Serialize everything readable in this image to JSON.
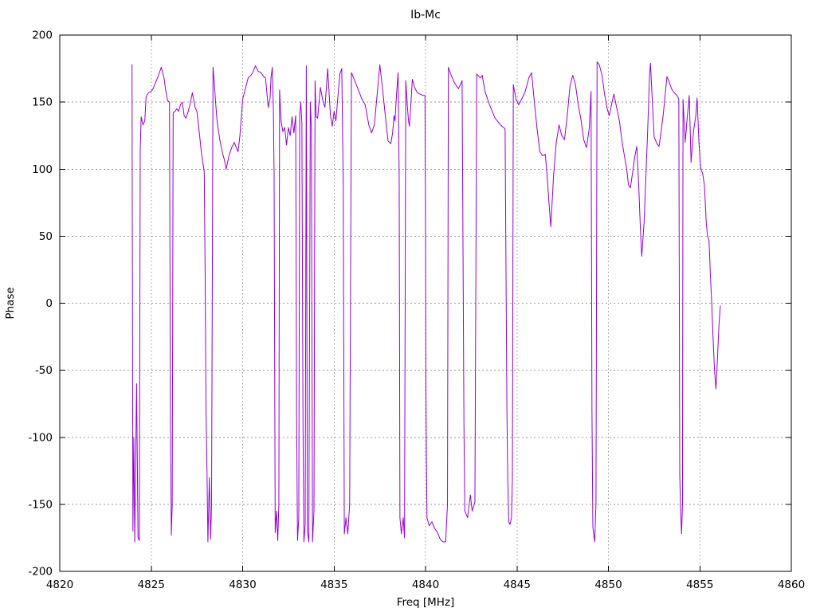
{
  "window": {
    "background": "#ffffff"
  },
  "chart_data": {
    "type": "line",
    "title": "Ib-Mc",
    "xlabel": "Freq [MHz]",
    "ylabel": "Phase",
    "xlim": [
      4820,
      4860
    ],
    "ylim": [
      -200,
      200
    ],
    "xticks": [
      4820,
      4825,
      4830,
      4835,
      4840,
      4845,
      4850,
      4855,
      4860
    ],
    "yticks": [
      -200,
      -150,
      -100,
      -50,
      0,
      50,
      100,
      150,
      200
    ],
    "grid": true,
    "legend": "none",
    "line_color": "#9400d3",
    "grid_color": "#9a9a9a",
    "border_color": "#000000",
    "series": [
      {
        "name": "phase",
        "points": [
          [
            4823.95,
            178
          ],
          [
            4824.0,
            -170
          ],
          [
            4824.05,
            -100
          ],
          [
            4824.1,
            -178
          ],
          [
            4824.2,
            -60
          ],
          [
            4824.28,
            -175
          ],
          [
            4824.35,
            -177
          ],
          [
            4824.4,
            114
          ],
          [
            4824.45,
            139
          ],
          [
            4824.55,
            133
          ],
          [
            4824.65,
            136
          ],
          [
            4824.72,
            154
          ],
          [
            4824.85,
            157
          ],
          [
            4825.0,
            158
          ],
          [
            4825.1,
            160
          ],
          [
            4825.25,
            165
          ],
          [
            4825.4,
            170
          ],
          [
            4825.55,
            176
          ],
          [
            4825.7,
            168
          ],
          [
            4825.8,
            158
          ],
          [
            4825.9,
            151
          ],
          [
            4826.0,
            150
          ],
          [
            4826.05,
            -79
          ],
          [
            4826.1,
            -173
          ],
          [
            4826.15,
            -150
          ],
          [
            4826.2,
            142
          ],
          [
            4826.3,
            143
          ],
          [
            4826.4,
            145
          ],
          [
            4826.5,
            143
          ],
          [
            4826.6,
            148
          ],
          [
            4826.7,
            150
          ],
          [
            4826.8,
            140
          ],
          [
            4826.9,
            138
          ],
          [
            4827.0,
            142
          ],
          [
            4827.1,
            147
          ],
          [
            4827.25,
            157
          ],
          [
            4827.4,
            146
          ],
          [
            4827.5,
            143
          ],
          [
            4827.6,
            131
          ],
          [
            4827.75,
            112
          ],
          [
            4827.9,
            98
          ],
          [
            4827.95,
            20
          ],
          [
            4828.0,
            -83
          ],
          [
            4828.05,
            -125
          ],
          [
            4828.1,
            -178
          ],
          [
            4828.18,
            -130
          ],
          [
            4828.25,
            -176
          ],
          [
            4828.3,
            -150
          ],
          [
            4828.38,
            176
          ],
          [
            4828.45,
            164
          ],
          [
            4828.52,
            150
          ],
          [
            4828.6,
            136
          ],
          [
            4828.75,
            122
          ],
          [
            4828.9,
            112
          ],
          [
            4829.0,
            107
          ],
          [
            4829.1,
            100
          ],
          [
            4829.25,
            110
          ],
          [
            4829.4,
            116
          ],
          [
            4829.55,
            120
          ],
          [
            4829.65,
            116
          ],
          [
            4829.75,
            113
          ],
          [
            4829.85,
            125
          ],
          [
            4830.0,
            152
          ],
          [
            4830.15,
            160
          ],
          [
            4830.3,
            168
          ],
          [
            4830.45,
            170
          ],
          [
            4830.55,
            172
          ],
          [
            4830.7,
            177
          ],
          [
            4830.85,
            173
          ],
          [
            4831.0,
            172
          ],
          [
            4831.15,
            169
          ],
          [
            4831.25,
            168
          ],
          [
            4831.4,
            146
          ],
          [
            4831.5,
            153
          ],
          [
            4831.55,
            168
          ],
          [
            4831.62,
            176
          ],
          [
            4831.68,
            145
          ],
          [
            4831.72,
            96
          ],
          [
            4831.78,
            -171
          ],
          [
            4831.85,
            -155
          ],
          [
            4831.92,
            -177
          ],
          [
            4831.98,
            -150
          ],
          [
            4832.02,
            159
          ],
          [
            4832.1,
            136
          ],
          [
            4832.2,
            128
          ],
          [
            4832.3,
            131
          ],
          [
            4832.4,
            118
          ],
          [
            4832.5,
            131
          ],
          [
            4832.6,
            125
          ],
          [
            4832.7,
            139
          ],
          [
            4832.8,
            127
          ],
          [
            4832.9,
            140
          ],
          [
            4832.95,
            -82
          ],
          [
            4833.0,
            -177
          ],
          [
            4833.07,
            -160
          ],
          [
            4833.12,
            141
          ],
          [
            4833.18,
            150
          ],
          [
            4833.24,
            134
          ],
          [
            4833.3,
            -90
          ],
          [
            4833.35,
            -178
          ],
          [
            4833.42,
            -165
          ],
          [
            4833.48,
            177
          ],
          [
            4833.54,
            -170
          ],
          [
            4833.62,
            -178
          ],
          [
            4833.7,
            150
          ],
          [
            4833.76,
            130
          ],
          [
            4833.82,
            -178
          ],
          [
            4833.9,
            -155
          ],
          [
            4833.96,
            166
          ],
          [
            4834.02,
            139
          ],
          [
            4834.1,
            138
          ],
          [
            4834.25,
            161
          ],
          [
            4834.4,
            150
          ],
          [
            4834.5,
            146
          ],
          [
            4834.65,
            175
          ],
          [
            4834.8,
            140
          ],
          [
            4834.9,
            132
          ],
          [
            4835.0,
            143
          ],
          [
            4835.1,
            136
          ],
          [
            4835.22,
            156
          ],
          [
            4835.32,
            171
          ],
          [
            4835.42,
            175
          ],
          [
            4835.5,
            87
          ],
          [
            4835.56,
            -172
          ],
          [
            4835.65,
            -160
          ],
          [
            4835.75,
            -172
          ],
          [
            4835.85,
            -150
          ],
          [
            4835.95,
            172
          ],
          [
            4836.1,
            167
          ],
          [
            4836.3,
            160
          ],
          [
            4836.5,
            153
          ],
          [
            4836.7,
            148
          ],
          [
            4836.9,
            133
          ],
          [
            4837.05,
            127
          ],
          [
            4837.2,
            133
          ],
          [
            4837.35,
            155
          ],
          [
            4837.5,
            178
          ],
          [
            4837.65,
            160
          ],
          [
            4837.8,
            140
          ],
          [
            4837.95,
            121
          ],
          [
            4838.1,
            119
          ],
          [
            4838.2,
            127
          ],
          [
            4838.28,
            140
          ],
          [
            4838.33,
            136
          ],
          [
            4838.42,
            157
          ],
          [
            4838.5,
            172
          ],
          [
            4838.56,
            93
          ],
          [
            4838.6,
            -160
          ],
          [
            4838.68,
            -172
          ],
          [
            4838.78,
            -160
          ],
          [
            4838.85,
            -175
          ],
          [
            4838.92,
            166
          ],
          [
            4839.0,
            148
          ],
          [
            4839.07,
            136
          ],
          [
            4839.12,
            132
          ],
          [
            4839.2,
            149
          ],
          [
            4839.28,
            167
          ],
          [
            4839.4,
            161
          ],
          [
            4839.55,
            157
          ],
          [
            4839.7,
            156
          ],
          [
            4839.85,
            155
          ],
          [
            4839.97,
            155
          ],
          [
            4840.0,
            60
          ],
          [
            4840.02,
            -59
          ],
          [
            4840.05,
            -120
          ],
          [
            4840.08,
            -160
          ],
          [
            4840.2,
            -166
          ],
          [
            4840.35,
            -163
          ],
          [
            4840.5,
            -168
          ],
          [
            4840.65,
            -171
          ],
          [
            4840.8,
            -176
          ],
          [
            4840.95,
            -178
          ],
          [
            4841.1,
            -178
          ],
          [
            4841.2,
            -150
          ],
          [
            4841.25,
            176
          ],
          [
            4841.4,
            170
          ],
          [
            4841.6,
            164
          ],
          [
            4841.8,
            160
          ],
          [
            4842.0,
            166
          ],
          [
            4842.1,
            -90
          ],
          [
            4842.15,
            -155
          ],
          [
            4842.3,
            -160
          ],
          [
            4842.45,
            -143
          ],
          [
            4842.55,
            -155
          ],
          [
            4842.7,
            -148
          ],
          [
            4842.8,
            171
          ],
          [
            4843.0,
            168
          ],
          [
            4843.1,
            170
          ],
          [
            4843.25,
            158
          ],
          [
            4843.5,
            148
          ],
          [
            4843.8,
            138
          ],
          [
            4844.1,
            133
          ],
          [
            4844.35,
            130
          ],
          [
            4844.45,
            -80
          ],
          [
            4844.5,
            -133
          ],
          [
            4844.55,
            -163
          ],
          [
            4844.62,
            -165
          ],
          [
            4844.7,
            -160
          ],
          [
            4844.75,
            -131
          ],
          [
            4844.8,
            163
          ],
          [
            4844.95,
            152
          ],
          [
            4845.1,
            148
          ],
          [
            4845.25,
            152
          ],
          [
            4845.45,
            158
          ],
          [
            4845.65,
            168
          ],
          [
            4845.8,
            172
          ],
          [
            4845.95,
            150
          ],
          [
            4846.1,
            130
          ],
          [
            4846.25,
            113
          ],
          [
            4846.4,
            110
          ],
          [
            4846.55,
            111
          ],
          [
            4846.65,
            95
          ],
          [
            4846.75,
            75
          ],
          [
            4846.85,
            57
          ],
          [
            4847.0,
            95
          ],
          [
            4847.15,
            120
          ],
          [
            4847.3,
            133
          ],
          [
            4847.45,
            125
          ],
          [
            4847.6,
            122
          ],
          [
            4847.75,
            140
          ],
          [
            4847.9,
            162
          ],
          [
            4848.05,
            170
          ],
          [
            4848.2,
            163
          ],
          [
            4848.35,
            148
          ],
          [
            4848.5,
            137
          ],
          [
            4848.65,
            122
          ],
          [
            4848.8,
            116
          ],
          [
            4848.95,
            130
          ],
          [
            4849.05,
            158
          ],
          [
            4849.1,
            -80
          ],
          [
            4849.15,
            -167
          ],
          [
            4849.25,
            -178
          ],
          [
            4849.32,
            -150
          ],
          [
            4849.38,
            180
          ],
          [
            4849.5,
            178
          ],
          [
            4849.65,
            170
          ],
          [
            4849.8,
            155
          ],
          [
            4849.95,
            144
          ],
          [
            4850.05,
            140
          ],
          [
            4850.2,
            150
          ],
          [
            4850.3,
            156
          ],
          [
            4850.45,
            146
          ],
          [
            4850.6,
            136
          ],
          [
            4850.75,
            120
          ],
          [
            4850.9,
            108
          ],
          [
            4851.0,
            100
          ],
          [
            4851.1,
            88
          ],
          [
            4851.2,
            86
          ],
          [
            4851.35,
            100
          ],
          [
            4851.45,
            110
          ],
          [
            4851.55,
            117
          ],
          [
            4851.65,
            90
          ],
          [
            4851.75,
            55
          ],
          [
            4851.82,
            35
          ],
          [
            4851.95,
            60
          ],
          [
            4852.05,
            95
          ],
          [
            4852.15,
            130
          ],
          [
            4852.25,
            170
          ],
          [
            4852.3,
            179
          ],
          [
            4852.4,
            151
          ],
          [
            4852.5,
            124
          ],
          [
            4852.65,
            119
          ],
          [
            4852.77,
            117
          ],
          [
            4852.9,
            130
          ],
          [
            4853.0,
            141
          ],
          [
            4853.1,
            155
          ],
          [
            4853.2,
            169
          ],
          [
            4853.3,
            166
          ],
          [
            4853.45,
            160
          ],
          [
            4853.6,
            157
          ],
          [
            4853.75,
            155
          ],
          [
            4853.85,
            152
          ],
          [
            4853.9,
            -128
          ],
          [
            4853.95,
            -155
          ],
          [
            4854.0,
            -172
          ],
          [
            4854.05,
            -150
          ],
          [
            4854.08,
            152
          ],
          [
            4854.2,
            120
          ],
          [
            4854.3,
            137
          ],
          [
            4854.42,
            155
          ],
          [
            4854.52,
            105
          ],
          [
            4854.65,
            128
          ],
          [
            4854.78,
            140
          ],
          [
            4854.85,
            153
          ],
          [
            4854.95,
            120
          ],
          [
            4855.05,
            100
          ],
          [
            4855.15,
            97
          ],
          [
            4855.25,
            88
          ],
          [
            4855.35,
            60
          ],
          [
            4855.42,
            50
          ],
          [
            4855.5,
            47
          ],
          [
            4855.58,
            20
          ],
          [
            4855.65,
            0
          ],
          [
            4855.72,
            -25
          ],
          [
            4855.8,
            -50
          ],
          [
            4855.88,
            -64
          ],
          [
            4855.95,
            -45
          ],
          [
            4856.05,
            -15
          ],
          [
            4856.12,
            -2
          ]
        ]
      }
    ]
  }
}
